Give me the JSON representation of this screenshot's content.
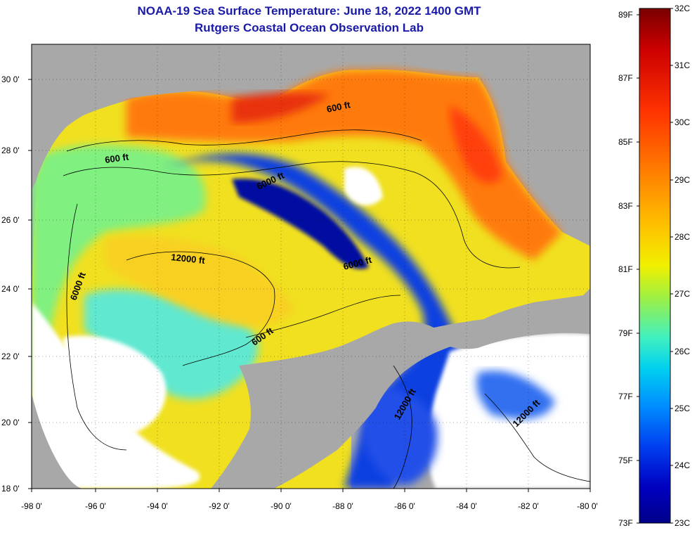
{
  "header": {
    "title": "NOAA-19 Sea Surface Temperature:  June 18, 2022 1400 GMT",
    "subtitle": "Rutgers Coastal Ocean Observation Lab"
  },
  "map": {
    "lat_ticks": [
      "30 0'",
      "28 0'",
      "26 0'",
      "24 0'",
      "22 0'",
      "20 0'",
      "18 0'"
    ],
    "lon_ticks": [
      "-98 0'",
      "-96 0'",
      "-94 0'",
      "-92 0'",
      "-90 0'",
      "-88 0'",
      "-86 0'",
      "-84 0'",
      "-82 0'",
      "-80 0'"
    ],
    "contour_labels": [
      "600 ft",
      "600 ft",
      "6000 ft",
      "12000 ft",
      "6000 ft",
      "6000 ft",
      "600 ft",
      "12000 ft",
      "12000 ft"
    ]
  },
  "colorbar": {
    "fahrenheit_labels": [
      "89F",
      "87F",
      "85F",
      "83F",
      "81F",
      "79F",
      "77F",
      "75F",
      "73F"
    ],
    "celsius_labels": [
      "32C",
      "31C",
      "30C",
      "29C",
      "28C",
      "27C",
      "26C",
      "25C",
      "24C",
      "23C"
    ],
    "colors": [
      "#7a0000",
      "#cc0000",
      "#ff3300",
      "#ff8000",
      "#ffc000",
      "#f0f000",
      "#a0f040",
      "#40f0c0",
      "#00d0f0",
      "#0090ff",
      "#0040f0",
      "#0000c0",
      "#00008a"
    ]
  },
  "colors": {
    "land": "#a8a8a8",
    "no_data": "#ffffff",
    "title": "#1a1aa8"
  }
}
